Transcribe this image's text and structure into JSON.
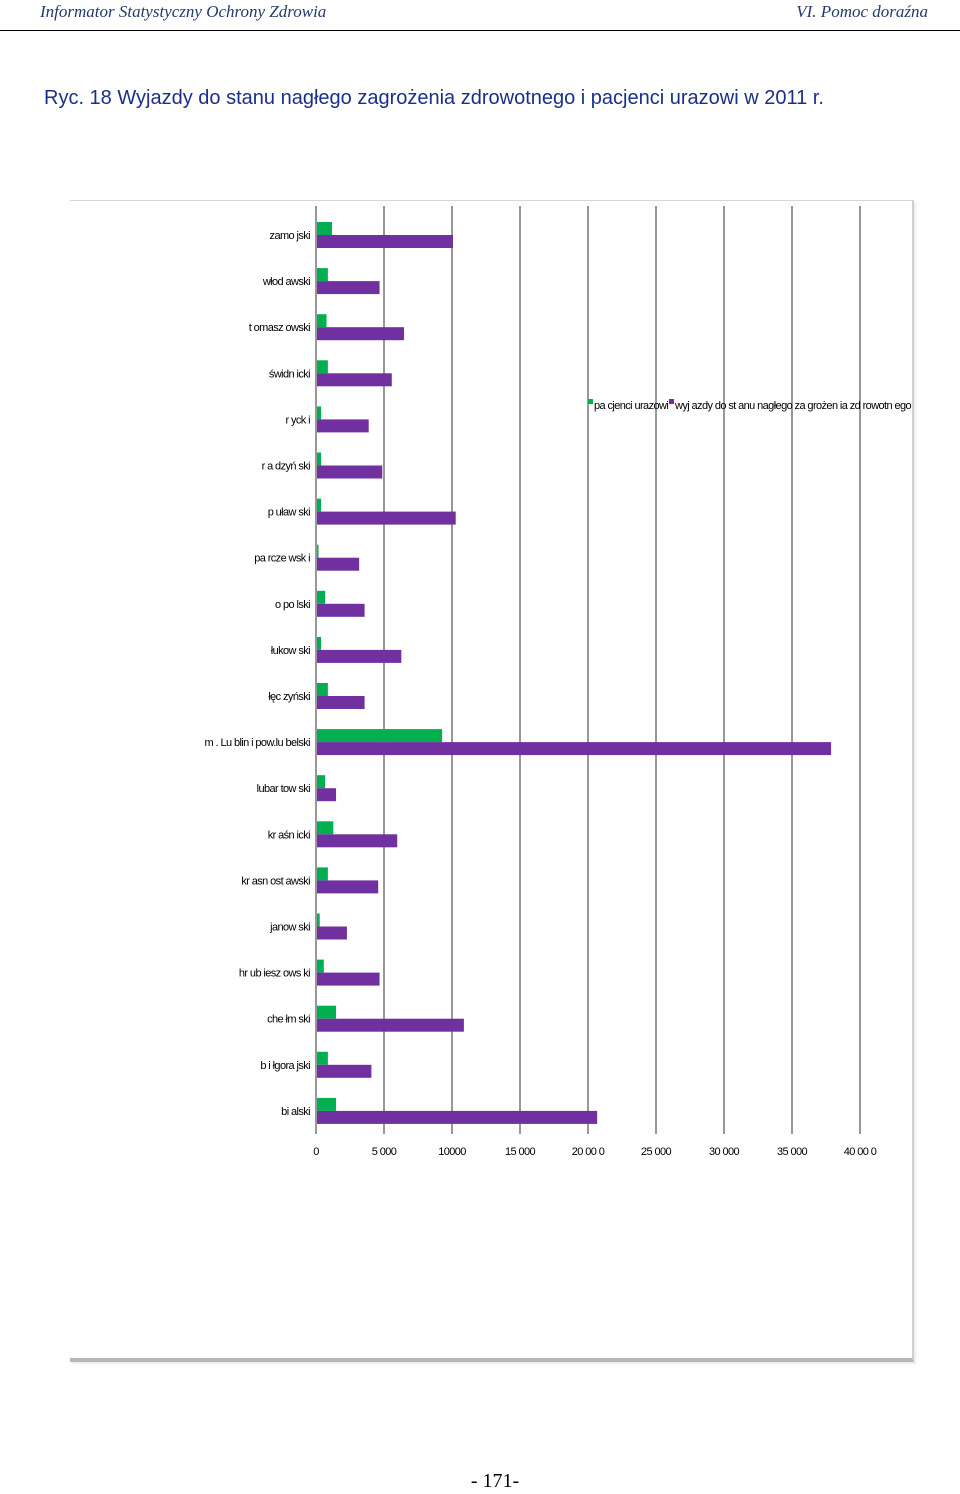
{
  "header": {
    "left": "Informator Statystyczny Ochrony Zdrowia",
    "right": "VI. Pomoc doraźna"
  },
  "caption": "Ryc. 18 Wyjazdy do stanu nagłego zagrożenia zdrowotnego i pacjenci urazowi w 2011 r.",
  "page_number": "- 171-",
  "chart_data": {
    "type": "bar",
    "orientation": "horizontal",
    "categories": [
      "zamojski",
      "włodawski",
      "tomaszowski",
      "świdnicki",
      "rycki",
      "radzyński",
      "puławski",
      "parczewski",
      "opolski",
      "łukowski",
      "łęczyński",
      "m. Lublin i pow.lubelski",
      "lubartowski",
      "kraśnicki",
      "krasnostawski",
      "janowski",
      "hrubieszowski",
      "chełmski",
      "biłgorajski",
      "bialski"
    ],
    "category_labels": [
      "zamo jski",
      "włod awski",
      "t omasz owski",
      "świdn icki",
      "r yck i",
      "r a dzyń ski",
      "p uław ski",
      "pa rcze wsk i",
      "o po lski",
      "łukow ski",
      "łęc zyński",
      "m . Lu blin i pow.lu belski",
      "lubar tow ski",
      "kr aśn icki",
      "kr asn ost awski",
      "janow ski",
      "hr ub iesz ows ki",
      "che łm ski",
      "b i łgora jski",
      "bi alski"
    ],
    "series": [
      {
        "name": "pacjenci urazowi",
        "legend_label": "pa cjenci urazowi",
        "color": "#00b050",
        "values": [
          1100,
          800,
          700,
          800,
          300,
          300,
          300,
          100,
          600,
          300,
          800,
          9200,
          600,
          1200,
          800,
          200,
          500,
          1400,
          800,
          1400
        ]
      },
      {
        "name": "wyjazdy do stanu nagłego zagrożenia zdrowotnego",
        "legend_label": "wyj azdy do st anu nagłego za grożen ia zd rowotn ego",
        "color": "#7030a0",
        "values": [
          10000,
          4600,
          6400,
          5500,
          3800,
          4800,
          10200,
          3100,
          3500,
          6200,
          3500,
          37800,
          1400,
          5900,
          4500,
          2200,
          4600,
          10800,
          4000,
          20600
        ]
      }
    ],
    "x_ticks": [
      0,
      5000,
      10000,
      15000,
      20000,
      25000,
      30000,
      35000,
      40000
    ],
    "x_tick_labels": [
      "0",
      "5 000",
      "10000",
      "15 000",
      "20 00 0",
      "25 000",
      "30 000",
      "35 000",
      "40 00 0"
    ],
    "xlim": [
      0,
      40000
    ],
    "grid": "vertical",
    "legend_position": "top-right",
    "title": "",
    "xlabel": "",
    "ylabel": ""
  }
}
